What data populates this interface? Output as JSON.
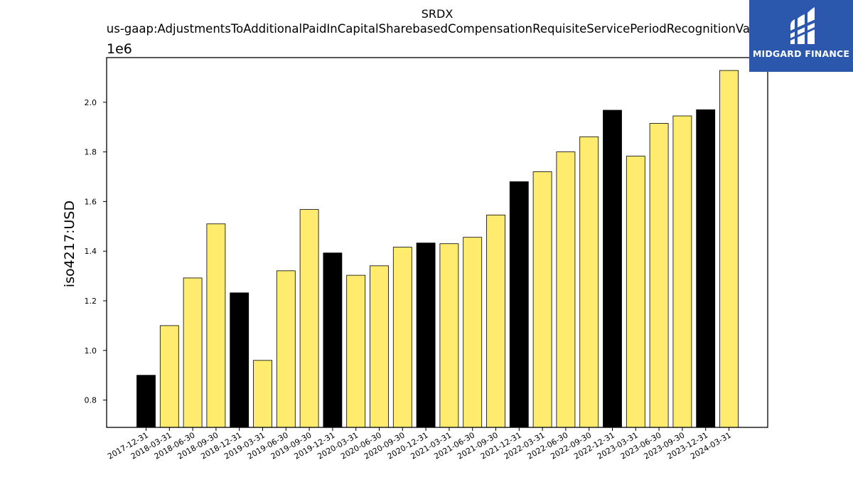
{
  "chart_data": {
    "type": "bar",
    "title": "SRDX",
    "subtitle": "us-gaap:AdjustmentsToAdditionalPaidInCapitalSharebasedCompensationRequisiteServicePeriodRecognitionValue",
    "ylabel": "iso4217:USD",
    "xlabel": "",
    "y_offset_label": "1e6",
    "y_scale": 1000000,
    "ylim": [
      0.69,
      2.18
    ],
    "yticks": [
      0.8,
      1.0,
      1.2,
      1.4,
      1.6,
      1.8,
      2.0
    ],
    "ytick_labels": [
      "0.8",
      "1.0",
      "1.2",
      "1.4",
      "1.6",
      "1.8",
      "2.0"
    ],
    "grid": false,
    "colors": {
      "q4": "#000000",
      "other": "#ffeb6e",
      "edge": "#000000"
    },
    "categories": [
      "2017-12-31",
      "2018-03-31",
      "2018-06-30",
      "2018-09-30",
      "2018-12-31",
      "2019-03-31",
      "2019-06-30",
      "2019-09-30",
      "2019-12-31",
      "2020-03-31",
      "2020-06-30",
      "2020-09-30",
      "2020-12-31",
      "2021-03-31",
      "2021-06-30",
      "2021-09-30",
      "2021-12-31",
      "2022-03-31",
      "2022-06-30",
      "2022-09-30",
      "2022-12-31",
      "2023-03-31",
      "2023-06-30",
      "2023-09-30",
      "2023-12-31",
      "2024-03-31"
    ],
    "values": [
      900000,
      1100000,
      1292000,
      1510000,
      1232000,
      960000,
      1321000,
      1568000,
      1393000,
      1303000,
      1341000,
      1416000,
      1433000,
      1430000,
      1456000,
      1546000,
      1680000,
      1720000,
      1800000,
      1861000,
      1968000,
      1783000,
      1915000,
      1945000,
      1970000,
      2128000
    ],
    "highlight": [
      true,
      false,
      false,
      false,
      true,
      false,
      false,
      false,
      true,
      false,
      false,
      false,
      true,
      false,
      false,
      false,
      true,
      false,
      false,
      false,
      true,
      false,
      false,
      false,
      true,
      false
    ]
  },
  "logo": {
    "text": "MIDGARD FINANCE",
    "bg_color": "#2b58ad",
    "icon": "midgard-logo-icon"
  }
}
